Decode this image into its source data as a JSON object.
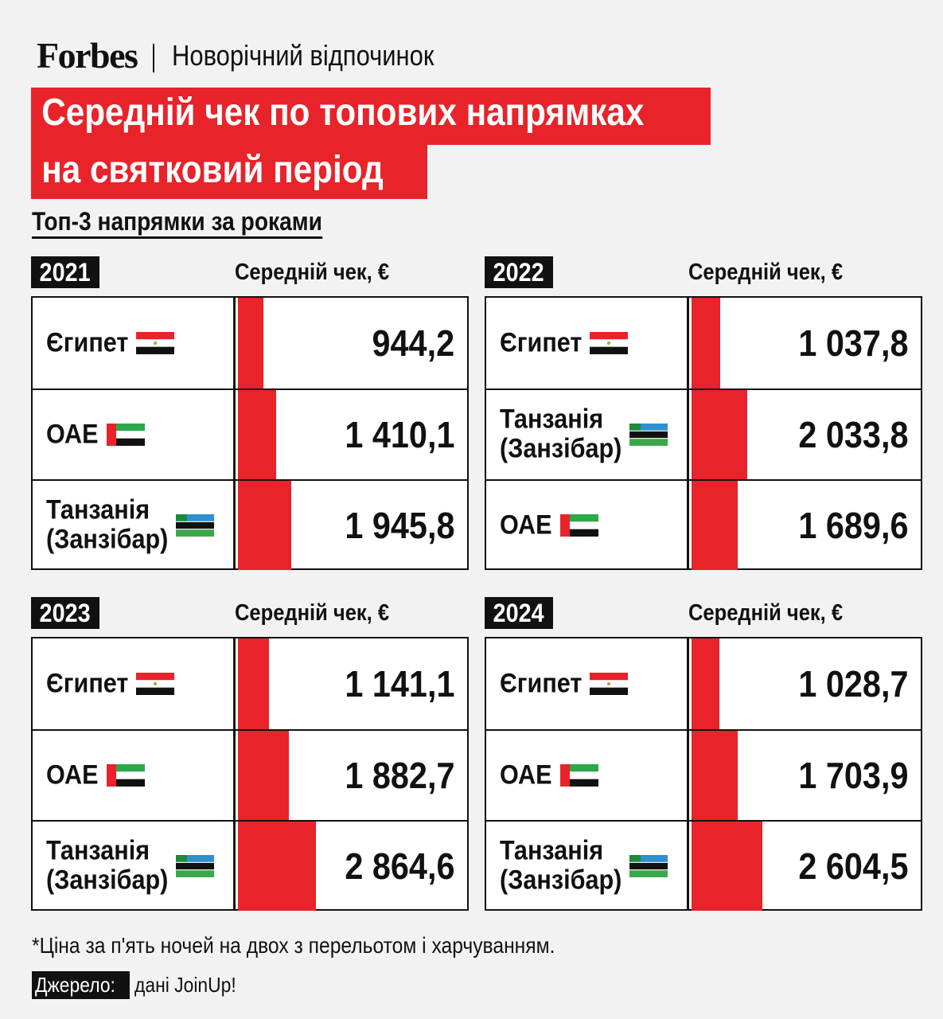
{
  "header": {
    "brand": "Forbes",
    "section": "Новорічний відпочинок"
  },
  "title": {
    "line1": "Середній чек по топових напрямках",
    "line2": "на святковий період"
  },
  "subtitle": "Топ-3 напрямки за роками",
  "column_header": "Середній чек, €",
  "colors": {
    "accent": "#e8232a",
    "dark": "#111111",
    "panel_bg": "#ffffff",
    "page_bg": "#f2f2f2"
  },
  "chart_data": [
    {
      "type": "bar",
      "title": "2021",
      "ylabel": "Середній чек, €",
      "categories": [
        "Єгипет",
        "ОАЕ",
        "Танзанія (Занзібар)"
      ],
      "values": [
        944.2,
        1410.1,
        1945.8
      ],
      "value_labels": [
        "944,2",
        "1 410,1",
        "1 945,8"
      ],
      "flags": [
        "egypt-flag",
        "uae-flag",
        "tanzania-zanzibar-flag"
      ]
    },
    {
      "type": "bar",
      "title": "2022",
      "ylabel": "Середній чек, €",
      "categories": [
        "Єгипет",
        "Танзанія (Занзібар)",
        "ОАЕ"
      ],
      "values": [
        1037.8,
        2033.8,
        1689.6
      ],
      "value_labels": [
        "1 037,8",
        "2 033,8",
        "1 689,6"
      ],
      "flags": [
        "egypt-flag",
        "tanzania-zanzibar-flag",
        "uae-flag"
      ]
    },
    {
      "type": "bar",
      "title": "2023",
      "ylabel": "Середній чек, €",
      "categories": [
        "Єгипет",
        "ОАЕ",
        "Танзанія (Занзібар)"
      ],
      "values": [
        1141.1,
        1882.7,
        2864.6
      ],
      "value_labels": [
        "1 141,1",
        "1 882,7",
        "2 864,6"
      ],
      "flags": [
        "egypt-flag",
        "uae-flag",
        "tanzania-zanzibar-flag"
      ]
    },
    {
      "type": "bar",
      "title": "2024",
      "ylabel": "Середній чек, €",
      "categories": [
        "Єгипет",
        "ОАЕ",
        "Танзанія (Занзібар)"
      ],
      "values": [
        1028.7,
        1703.9,
        2604.5
      ],
      "value_labels": [
        "1 028,7",
        "1 703,9",
        "2 604,5"
      ],
      "flags": [
        "egypt-flag",
        "uae-flag",
        "tanzania-zanzibar-flag"
      ]
    }
  ],
  "footnote": "*Ціна за п'ять ночей на двох з перельотом і харчуванням.",
  "source": {
    "label": "Джерело:",
    "text": "дані JoinUp!"
  }
}
